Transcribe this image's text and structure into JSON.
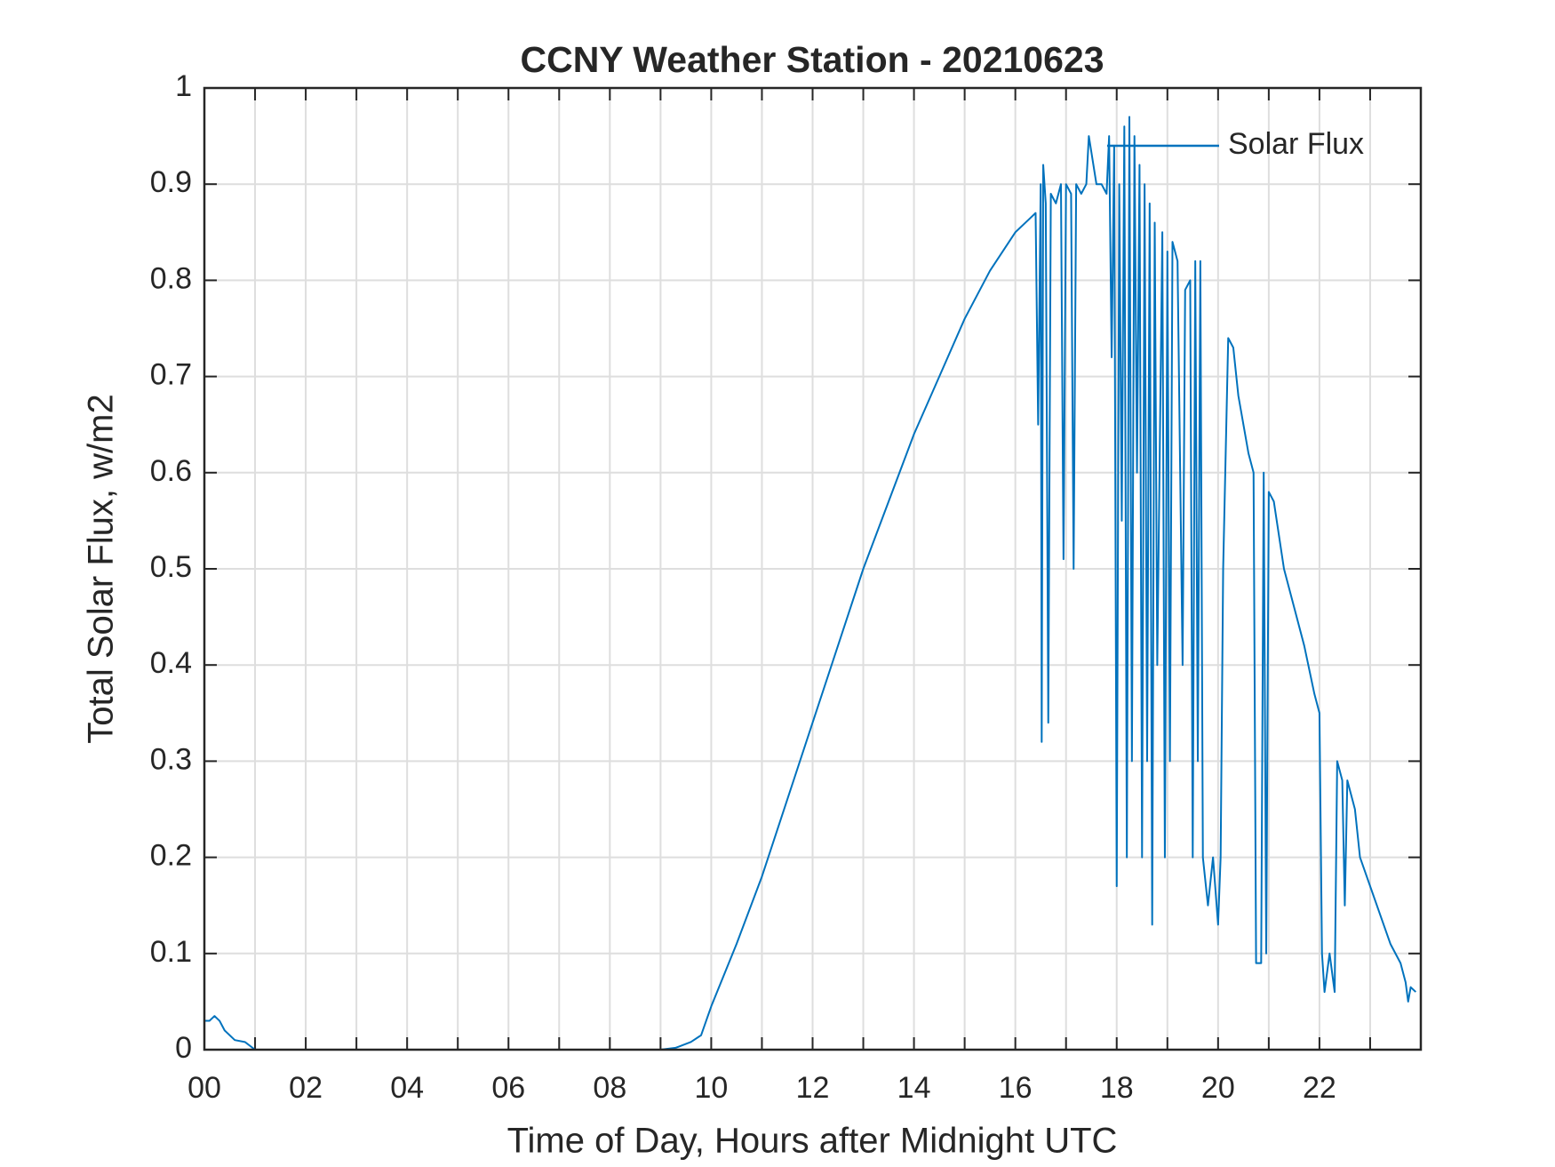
{
  "chart_data": {
    "type": "line",
    "title": "CCNY Weather Station - 20210623",
    "xlabel": "Time of Day, Hours after Midnight UTC",
    "ylabel": "Total Solar Flux, w/m2",
    "xlim": [
      0,
      24
    ],
    "ylim": [
      0,
      1
    ],
    "xticks": [
      {
        "value": 0,
        "label": "00"
      },
      {
        "value": 2,
        "label": "02"
      },
      {
        "value": 4,
        "label": "04"
      },
      {
        "value": 6,
        "label": "06"
      },
      {
        "value": 8,
        "label": "08"
      },
      {
        "value": 10,
        "label": "10"
      },
      {
        "value": 12,
        "label": "12"
      },
      {
        "value": 14,
        "label": "14"
      },
      {
        "value": 16,
        "label": "16"
      },
      {
        "value": 18,
        "label": "18"
      },
      {
        "value": 20,
        "label": "20"
      },
      {
        "value": 22,
        "label": "22"
      }
    ],
    "xminorticks": [
      1,
      3,
      5,
      7,
      9,
      11,
      13,
      15,
      17,
      19,
      21,
      23
    ],
    "yticks": [
      0,
      0.1,
      0.2,
      0.3,
      0.4,
      0.5,
      0.6,
      0.7,
      0.8,
      0.9,
      1
    ],
    "grid": true,
    "legend": "upper right",
    "x": [
      0,
      0.1,
      0.2,
      0.3,
      0.4,
      0.6,
      0.8,
      1.0,
      9.0,
      9.3,
      9.6,
      9.8,
      9.9,
      10,
      10.5,
      11,
      11.5,
      12,
      12.5,
      13,
      13.5,
      14,
      14.5,
      15,
      15.5,
      16,
      16.3,
      16.4,
      16.45,
      16.5,
      16.52,
      16.55,
      16.6,
      16.65,
      16.7,
      16.8,
      16.9,
      16.95,
      17.0,
      17.1,
      17.15,
      17.2,
      17.3,
      17.4,
      17.45,
      17.6,
      17.7,
      17.8,
      17.85,
      17.9,
      17.95,
      18.0,
      18.05,
      18.1,
      18.15,
      18.2,
      18.25,
      18.3,
      18.35,
      18.4,
      18.45,
      18.5,
      18.55,
      18.6,
      18.65,
      18.7,
      18.75,
      18.8,
      18.9,
      18.95,
      19.0,
      19.05,
      19.1,
      19.2,
      19.3,
      19.35,
      19.45,
      19.5,
      19.55,
      19.6,
      19.65,
      19.7,
      19.8,
      19.9,
      20.0,
      20.05,
      20.1,
      20.2,
      20.3,
      20.4,
      20.5,
      20.6,
      20.7,
      20.75,
      20.85,
      20.9,
      20.95,
      21.0,
      21.1,
      21.3,
      21.5,
      21.7,
      21.9,
      22.0,
      22.05,
      22.1,
      22.2,
      22.3,
      22.35,
      22.45,
      22.5,
      22.55,
      22.7,
      22.8,
      23.0,
      23.2,
      23.4,
      23.6,
      23.7,
      23.75,
      23.8,
      23.9
    ],
    "series": [
      {
        "name": "Solar Flux",
        "color": "#0072bd",
        "values": [
          0.03,
          0.03,
          0.035,
          0.03,
          0.02,
          0.01,
          0.008,
          0,
          0,
          0.002,
          0.008,
          0.015,
          0.03,
          0.045,
          0.11,
          0.18,
          0.26,
          0.34,
          0.42,
          0.5,
          0.57,
          0.64,
          0.7,
          0.76,
          0.81,
          0.85,
          0.865,
          0.87,
          0.65,
          0.9,
          0.32,
          0.92,
          0.88,
          0.34,
          0.89,
          0.88,
          0.9,
          0.51,
          0.9,
          0.89,
          0.5,
          0.9,
          0.89,
          0.9,
          0.95,
          0.9,
          0.9,
          0.89,
          0.95,
          0.72,
          0.94,
          0.17,
          0.9,
          0.55,
          0.96,
          0.2,
          0.97,
          0.3,
          0.95,
          0.6,
          0.92,
          0.2,
          0.9,
          0.3,
          0.88,
          0.13,
          0.86,
          0.4,
          0.85,
          0.2,
          0.83,
          0.3,
          0.84,
          0.82,
          0.4,
          0.79,
          0.8,
          0.2,
          0.82,
          0.3,
          0.82,
          0.2,
          0.15,
          0.2,
          0.13,
          0.2,
          0.5,
          0.74,
          0.73,
          0.68,
          0.65,
          0.62,
          0.6,
          0.09,
          0.09,
          0.6,
          0.1,
          0.58,
          0.57,
          0.5,
          0.46,
          0.42,
          0.37,
          0.35,
          0.1,
          0.06,
          0.1,
          0.06,
          0.3,
          0.28,
          0.15,
          0.28,
          0.25,
          0.2,
          0.17,
          0.14,
          0.11,
          0.09,
          0.07,
          0.05,
          0.065,
          0.06
        ]
      }
    ]
  }
}
